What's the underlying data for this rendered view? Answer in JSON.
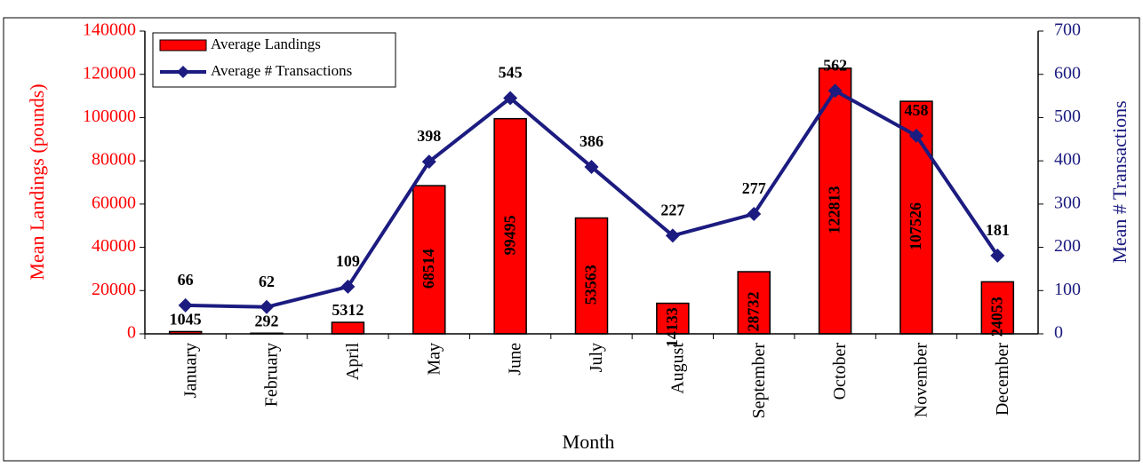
{
  "chart_data": {
    "type": "bar_line",
    "categories": [
      "January",
      "February",
      "April",
      "May",
      "June",
      "July",
      "August",
      "September",
      "October",
      "November",
      "December"
    ],
    "series": [
      {
        "name": "Average Landings",
        "color": "#ff0000",
        "type": "bar",
        "values": [
          1045,
          292,
          5312,
          68514,
          99495,
          53563,
          14133,
          28732,
          122813,
          107526,
          24053
        ]
      },
      {
        "name": "Average # Transactions",
        "color": "#1b1b80",
        "type": "line",
        "axis": "y2",
        "values": [
          66,
          62,
          109,
          398,
          545,
          386,
          227,
          277,
          562,
          458,
          181
        ]
      }
    ],
    "ylabel": "Mean Landings (pounds)",
    "y2label": "Mean # Transactions",
    "xlabel": "Month",
    "ylim": [
      0,
      140000
    ],
    "yticks": [
      0,
      20000,
      40000,
      60000,
      80000,
      100000,
      120000,
      140000
    ],
    "y2lim": [
      0,
      700
    ],
    "y2ticks": [
      0,
      100,
      200,
      300,
      400,
      500,
      600,
      700
    ],
    "legend": "top-left"
  }
}
